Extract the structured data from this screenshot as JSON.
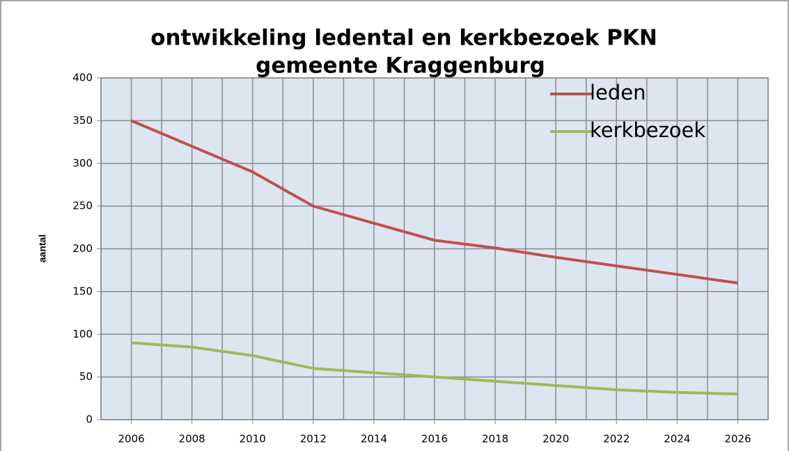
{
  "chart_data": {
    "type": "line",
    "title": "ontwikkeling ledental en kerkbezoek PKN",
    "subtitle": "gemeente Kraggenburg",
    "ylabel": "aantal",
    "x": [
      2006,
      2008,
      2010,
      2012,
      2014,
      2016,
      2018,
      2020,
      2022,
      2024,
      2026
    ],
    "series": [
      {
        "name": "leden",
        "color": "#c0504d",
        "values": [
          350,
          320,
          290,
          250,
          230,
          210,
          201,
          190,
          180,
          170,
          160
        ]
      },
      {
        "name": "kerkbezoek",
        "color": "#9bbb59",
        "values": [
          90,
          85,
          75,
          60,
          55,
          50,
          45,
          40,
          35,
          32,
          30
        ]
      }
    ],
    "xlim": [
      2005,
      2027
    ],
    "xticks": [
      2006,
      2008,
      2010,
      2012,
      2014,
      2016,
      2018,
      2020,
      2022,
      2024,
      2026
    ],
    "xminor_ticks": [
      2005,
      2007,
      2009,
      2011,
      2013,
      2015,
      2017,
      2019,
      2021,
      2023,
      2025,
      2027
    ],
    "ylim": [
      0,
      400
    ],
    "yticks": [
      0,
      50,
      100,
      150,
      200,
      250,
      300,
      350,
      400
    ],
    "grid": true,
    "plot_background": "#dce6f1",
    "legend": "upper right"
  }
}
